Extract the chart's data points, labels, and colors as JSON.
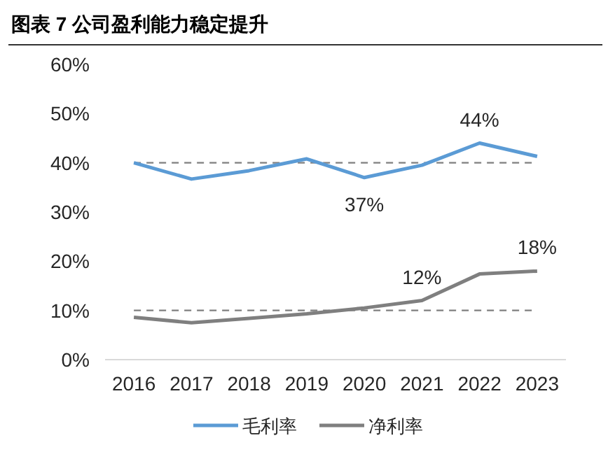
{
  "chart_data": {
    "type": "line",
    "title": "图表 7 公司盈利能力稳定提升",
    "categories": [
      "2016",
      "2017",
      "2018",
      "2019",
      "2020",
      "2021",
      "2022",
      "2023"
    ],
    "series": [
      {
        "name": "毛利率",
        "color": "#5b9bd5",
        "values": [
          40.0,
          36.7,
          38.4,
          40.8,
          37,
          39.5,
          44,
          41.3
        ],
        "value_labels": [
          null,
          null,
          null,
          null,
          "37%",
          null,
          "44%",
          null
        ]
      },
      {
        "name": "净利率",
        "color": "#7f7f7f",
        "values": [
          8.6,
          7.5,
          8.4,
          9.3,
          10.5,
          12,
          17.4,
          18
        ],
        "value_labels": [
          null,
          null,
          null,
          null,
          null,
          "12%",
          null,
          "18%"
        ]
      }
    ],
    "ylim": [
      0,
      60
    ],
    "yticks": [
      {
        "value": 0,
        "label": "0%"
      },
      {
        "value": 10,
        "label": "10%"
      },
      {
        "value": 20,
        "label": "20%"
      },
      {
        "value": 30,
        "label": "30%"
      },
      {
        "value": 40,
        "label": "40%"
      },
      {
        "value": 50,
        "label": "50%"
      },
      {
        "value": 60,
        "label": "60%"
      }
    ],
    "ref_lines": [
      {
        "axis": "y",
        "value": 40,
        "color": "#7f7f7f",
        "line_style": "dashed"
      },
      {
        "axis": "y",
        "value": 10,
        "color": "#7f7f7f",
        "line_style": "dashed"
      }
    ],
    "grid": false,
    "legend": "bottom",
    "marker": "none",
    "line_style": "solid"
  }
}
